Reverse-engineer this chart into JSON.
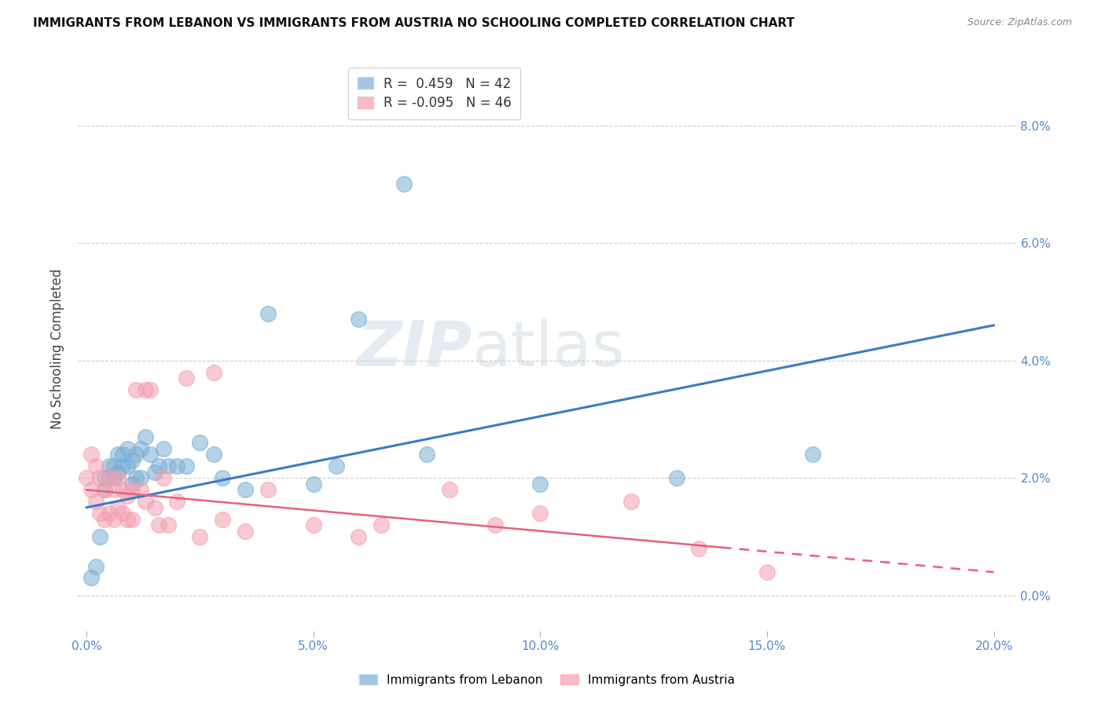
{
  "title": "IMMIGRANTS FROM LEBANON VS IMMIGRANTS FROM AUSTRIA NO SCHOOLING COMPLETED CORRELATION CHART",
  "source": "Source: ZipAtlas.com",
  "ylabel": "No Schooling Completed",
  "xlabel_ticks": [
    "0.0%",
    "5.0%",
    "10.0%",
    "15.0%",
    "20.0%"
  ],
  "xlabel_vals": [
    0.0,
    0.05,
    0.1,
    0.15,
    0.2
  ],
  "ylabel_ticks": [
    "0.0%",
    "2.0%",
    "4.0%",
    "6.0%",
    "8.0%"
  ],
  "ylabel_vals": [
    0.0,
    0.02,
    0.04,
    0.06,
    0.08
  ],
  "xlim": [
    -0.002,
    0.205
  ],
  "ylim": [
    -0.006,
    0.09
  ],
  "lebanon_R": 0.459,
  "lebanon_N": 42,
  "austria_R": -0.095,
  "austria_N": 46,
  "lebanon_color": "#7BAFD4",
  "austria_color": "#F4A0B0",
  "legend_label_lebanon": "Immigrants from Lebanon",
  "legend_label_austria": "Immigrants from Austria",
  "watermark_zip": "ZIP",
  "watermark_atlas": "atlas",
  "lebanon_x": [
    0.001,
    0.002,
    0.003,
    0.004,
    0.004,
    0.005,
    0.005,
    0.006,
    0.006,
    0.007,
    0.007,
    0.008,
    0.008,
    0.009,
    0.009,
    0.01,
    0.01,
    0.011,
    0.011,
    0.012,
    0.012,
    0.013,
    0.014,
    0.015,
    0.016,
    0.017,
    0.018,
    0.02,
    0.022,
    0.025,
    0.028,
    0.03,
    0.035,
    0.04,
    0.05,
    0.055,
    0.06,
    0.07,
    0.075,
    0.1,
    0.13,
    0.16
  ],
  "lebanon_y": [
    0.003,
    0.005,
    0.01,
    0.018,
    0.02,
    0.02,
    0.022,
    0.02,
    0.022,
    0.021,
    0.024,
    0.022,
    0.024,
    0.022,
    0.025,
    0.019,
    0.023,
    0.02,
    0.024,
    0.02,
    0.025,
    0.027,
    0.024,
    0.021,
    0.022,
    0.025,
    0.022,
    0.022,
    0.022,
    0.026,
    0.024,
    0.02,
    0.018,
    0.048,
    0.019,
    0.022,
    0.047,
    0.07,
    0.024,
    0.019,
    0.02,
    0.024
  ],
  "austria_x": [
    0.0,
    0.001,
    0.001,
    0.002,
    0.002,
    0.003,
    0.003,
    0.004,
    0.004,
    0.005,
    0.005,
    0.006,
    0.006,
    0.007,
    0.007,
    0.008,
    0.008,
    0.009,
    0.009,
    0.01,
    0.01,
    0.011,
    0.012,
    0.013,
    0.013,
    0.014,
    0.015,
    0.016,
    0.017,
    0.018,
    0.02,
    0.022,
    0.025,
    0.028,
    0.03,
    0.035,
    0.04,
    0.05,
    0.06,
    0.065,
    0.08,
    0.09,
    0.1,
    0.12,
    0.135,
    0.15
  ],
  "austria_y": [
    0.02,
    0.018,
    0.024,
    0.016,
    0.022,
    0.014,
    0.02,
    0.013,
    0.018,
    0.014,
    0.02,
    0.013,
    0.018,
    0.015,
    0.02,
    0.014,
    0.018,
    0.013,
    0.017,
    0.013,
    0.018,
    0.035,
    0.018,
    0.035,
    0.016,
    0.035,
    0.015,
    0.012,
    0.02,
    0.012,
    0.016,
    0.037,
    0.01,
    0.038,
    0.013,
    0.011,
    0.018,
    0.012,
    0.01,
    0.012,
    0.018,
    0.012,
    0.014,
    0.016,
    0.008,
    0.004
  ],
  "leb_line_x0": 0.0,
  "leb_line_y0": 0.015,
  "leb_line_x1": 0.2,
  "leb_line_y1": 0.046,
  "aut_line_x0": 0.0,
  "aut_line_y0": 0.018,
  "aut_line_x1": 0.2,
  "aut_line_y1": 0.004
}
